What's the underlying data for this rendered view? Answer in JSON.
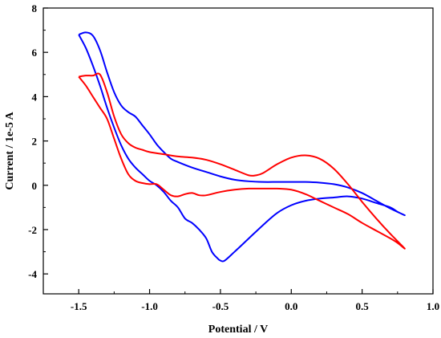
{
  "chart_data": {
    "type": "line",
    "xlabel": "Potential / V",
    "ylabel": "Current / 1e-5 A",
    "xlim": [
      -1.75,
      1.0
    ],
    "ylim": [
      -4.9,
      8.0
    ],
    "x_ticks": [
      -1.5,
      -1.0,
      -0.5,
      0.0,
      0.5,
      1.0
    ],
    "x_tick_labels": [
      "-1.5",
      "-1.0",
      "-0.5",
      "0.0",
      "0.5",
      "1.0"
    ],
    "y_ticks": [
      -4,
      -2,
      0,
      2,
      4,
      6,
      8
    ],
    "y_tick_labels": [
      "-4",
      "-2",
      "0",
      "2",
      "4",
      "6",
      "8"
    ],
    "grid": false,
    "legend": "none",
    "series": [
      {
        "color": "#0000ff",
        "x": [
          -1.5,
          -1.45,
          -1.4,
          -1.35,
          -1.3,
          -1.25,
          -1.2,
          -1.15,
          -1.1,
          -1.05,
          -1.0,
          -0.95,
          -0.9,
          -0.85,
          -0.8,
          -0.7,
          -0.6,
          -0.5,
          -0.4,
          -0.3,
          -0.2,
          -0.1,
          0.0,
          0.1,
          0.2,
          0.3,
          0.4,
          0.5,
          0.6,
          0.7,
          0.8,
          0.75,
          0.7,
          0.6,
          0.5,
          0.4,
          0.3,
          0.2,
          0.1,
          0.0,
          -0.1,
          -0.2,
          -0.3,
          -0.4,
          -0.47,
          -0.5,
          -0.52,
          -0.56,
          -0.6,
          -0.65,
          -0.7,
          -0.75,
          -0.8,
          -0.85,
          -0.9,
          -0.95,
          -1.0,
          -1.05,
          -1.1,
          -1.15,
          -1.2,
          -1.25,
          -1.3,
          -1.35,
          -1.4,
          -1.45,
          -1.5
        ],
        "y": [
          6.8,
          6.9,
          6.75,
          6.1,
          5.1,
          4.2,
          3.6,
          3.3,
          3.1,
          2.7,
          2.3,
          1.85,
          1.5,
          1.2,
          1.05,
          0.8,
          0.6,
          0.4,
          0.25,
          0.18,
          0.15,
          0.15,
          0.15,
          0.15,
          0.12,
          0.05,
          -0.1,
          -0.35,
          -0.7,
          -1.05,
          -1.35,
          -1.2,
          -1.0,
          -0.8,
          -0.6,
          -0.5,
          -0.55,
          -0.6,
          -0.7,
          -0.9,
          -1.25,
          -1.8,
          -2.4,
          -3.0,
          -3.4,
          -3.4,
          -3.3,
          -3.0,
          -2.4,
          -2.0,
          -1.7,
          -1.5,
          -1.0,
          -0.7,
          -0.3,
          0.0,
          0.2,
          0.5,
          0.8,
          1.2,
          1.8,
          2.6,
          3.5,
          4.5,
          5.4,
          6.2,
          6.8
        ]
      },
      {
        "color": "#ff0000",
        "x": [
          -1.5,
          -1.45,
          -1.4,
          -1.35,
          -1.3,
          -1.25,
          -1.2,
          -1.15,
          -1.1,
          -1.05,
          -1.0,
          -0.9,
          -0.8,
          -0.7,
          -0.6,
          -0.5,
          -0.4,
          -0.3,
          -0.25,
          -0.2,
          -0.1,
          0.0,
          0.1,
          0.2,
          0.3,
          0.4,
          0.5,
          0.6,
          0.7,
          0.8,
          0.75,
          0.7,
          0.6,
          0.5,
          0.4,
          0.3,
          0.2,
          0.1,
          0.0,
          -0.1,
          -0.2,
          -0.3,
          -0.4,
          -0.5,
          -0.6,
          -0.65,
          -0.7,
          -0.75,
          -0.8,
          -0.85,
          -0.9,
          -0.95,
          -1.0,
          -1.05,
          -1.1,
          -1.15,
          -1.2,
          -1.25,
          -1.3,
          -1.35,
          -1.4,
          -1.45,
          -1.5
        ],
        "y": [
          4.9,
          4.95,
          4.95,
          5.0,
          4.2,
          3.1,
          2.3,
          1.9,
          1.7,
          1.6,
          1.5,
          1.4,
          1.3,
          1.25,
          1.15,
          0.95,
          0.7,
          0.45,
          0.45,
          0.55,
          0.95,
          1.25,
          1.35,
          1.2,
          0.75,
          0.05,
          -0.75,
          -1.5,
          -2.2,
          -2.85,
          -2.6,
          -2.4,
          -2.05,
          -1.7,
          -1.3,
          -1.0,
          -0.7,
          -0.4,
          -0.2,
          -0.15,
          -0.15,
          -0.15,
          -0.2,
          -0.3,
          -0.45,
          -0.45,
          -0.35,
          -0.4,
          -0.5,
          -0.45,
          -0.2,
          0.05,
          0.05,
          0.1,
          0.2,
          0.5,
          1.2,
          2.1,
          3.0,
          3.5,
          4.0,
          4.5,
          4.9
        ]
      }
    ]
  }
}
